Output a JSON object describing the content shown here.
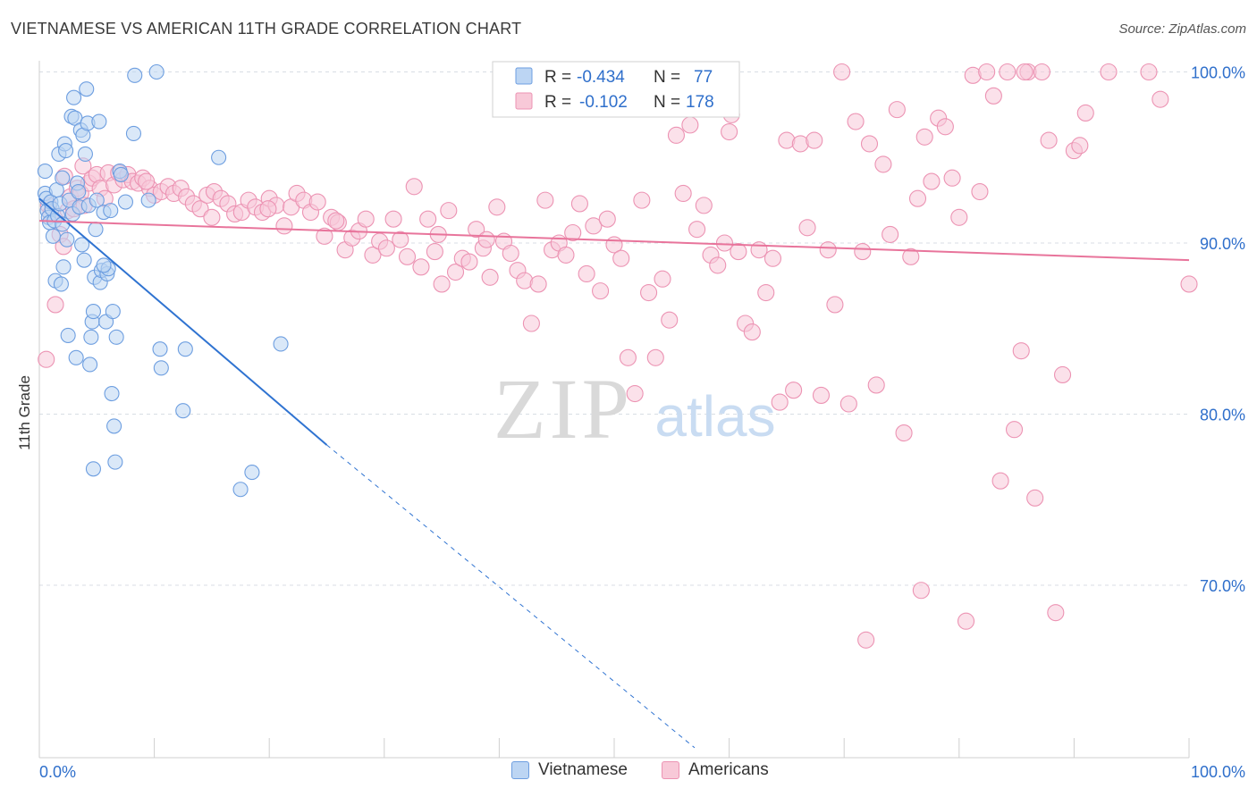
{
  "title": "VIETNAMESE VS AMERICAN 11TH GRADE CORRELATION CHART",
  "source": "Source: ZipAtlas.com",
  "colors": {
    "blue_fill": "#bcd5f3",
    "blue_stroke": "#6d9ee0",
    "blue_line": "#2f73d1",
    "pink_fill": "#f8c9d8",
    "pink_stroke": "#ec93b3",
    "pink_line": "#e8749b",
    "value_text": "#2f6fcb",
    "grid": "#d8dde4"
  },
  "stats_legend": {
    "rows": [
      {
        "r_label": "R =",
        "r_value": "-0.434",
        "n_label": "N =",
        "n_value": "77"
      },
      {
        "r_label": "R =",
        "r_value": "-0.102",
        "n_label": "N =",
        "n_value": "178"
      }
    ]
  },
  "bottom_legend": {
    "vietnamese": "Vietnamese",
    "americans": "Americans"
  },
  "watermark": {
    "zip": "ZIP",
    "atlas": "atlas"
  },
  "chart_data": {
    "type": "scatter",
    "title": "VIETNAMESE VS AMERICAN 11TH GRADE CORRELATION CHART",
    "xlabel": "",
    "ylabel": "11th Grade",
    "xlim": [
      0,
      100
    ],
    "ylim": [
      60.5,
      101.5
    ],
    "x_tick_labels": [
      "0.0%",
      "100.0%"
    ],
    "y_ticks": [
      70,
      80,
      90,
      100
    ],
    "y_tick_labels": [
      "70.0%",
      "80.0%",
      "90.0%",
      "100.0%"
    ],
    "grid": true,
    "series": [
      {
        "name": "Vietnamese",
        "r": -0.434,
        "n": 77,
        "trend": {
          "x0": 0,
          "y0": 92.6,
          "x1": 25,
          "y1": 78.2,
          "dashed_to_x": 57,
          "dashed_to_y": 60.5
        },
        "points": [
          [
            0.5,
            94.2
          ],
          [
            0.5,
            92.9
          ],
          [
            0.6,
            92.6
          ],
          [
            0.7,
            91.9
          ],
          [
            0.8,
            91.5
          ],
          [
            0.9,
            91.2
          ],
          [
            1.0,
            92.4
          ],
          [
            1.1,
            92.0
          ],
          [
            1.2,
            90.4
          ],
          [
            1.3,
            91.3
          ],
          [
            1.4,
            87.8
          ],
          [
            1.5,
            93.1
          ],
          [
            1.6,
            91.6
          ],
          [
            1.7,
            95.2
          ],
          [
            1.8,
            92.3
          ],
          [
            1.9,
            87.6
          ],
          [
            2.0,
            91.1
          ],
          [
            2.0,
            93.8
          ],
          [
            2.1,
            88.6
          ],
          [
            2.2,
            95.8
          ],
          [
            2.3,
            95.4
          ],
          [
            2.4,
            90.2
          ],
          [
            2.5,
            84.6
          ],
          [
            2.6,
            92.5
          ],
          [
            2.8,
            97.4
          ],
          [
            2.9,
            91.7
          ],
          [
            3.0,
            98.5
          ],
          [
            3.1,
            97.3
          ],
          [
            3.2,
            83.3
          ],
          [
            3.3,
            93.5
          ],
          [
            3.4,
            93.0
          ],
          [
            3.5,
            92.1
          ],
          [
            3.6,
            96.6
          ],
          [
            3.7,
            89.9
          ],
          [
            3.8,
            96.3
          ],
          [
            3.9,
            89.0
          ],
          [
            4.0,
            95.2
          ],
          [
            4.1,
            99.0
          ],
          [
            4.2,
            97.0
          ],
          [
            4.3,
            92.2
          ],
          [
            4.4,
            82.9
          ],
          [
            4.5,
            84.5
          ],
          [
            4.6,
            85.4
          ],
          [
            4.7,
            86.0
          ],
          [
            4.8,
            88.0
          ],
          [
            4.9,
            90.8
          ],
          [
            5.0,
            92.5
          ],
          [
            5.2,
            97.1
          ],
          [
            5.3,
            87.7
          ],
          [
            5.4,
            88.4
          ],
          [
            5.6,
            91.8
          ],
          [
            5.8,
            85.4
          ],
          [
            5.9,
            88.2
          ],
          [
            6.0,
            88.5
          ],
          [
            6.2,
            91.9
          ],
          [
            6.3,
            81.2
          ],
          [
            6.4,
            86.0
          ],
          [
            6.5,
            79.3
          ],
          [
            6.6,
            77.2
          ],
          [
            6.7,
            84.5
          ],
          [
            4.7,
            76.8
          ],
          [
            7.0,
            94.2
          ],
          [
            7.5,
            92.4
          ],
          [
            8.2,
            96.4
          ],
          [
            8.3,
            99.8
          ],
          [
            9.5,
            92.5
          ],
          [
            10.2,
            100.0
          ],
          [
            10.5,
            83.8
          ],
          [
            10.6,
            82.7
          ],
          [
            12.5,
            80.2
          ],
          [
            12.7,
            83.8
          ],
          [
            15.6,
            95.0
          ],
          [
            17.5,
            75.6
          ],
          [
            18.5,
            76.6
          ],
          [
            21.0,
            84.1
          ],
          [
            5.6,
            88.7
          ],
          [
            7.1,
            94.0
          ]
        ]
      },
      {
        "name": "Americans",
        "r": -0.102,
        "n": 178,
        "trend": {
          "x0": 0,
          "y0": 91.3,
          "x1": 100,
          "y1": 89.0
        },
        "points": [
          [
            0.6,
            83.2
          ],
          [
            0.8,
            92.2
          ],
          [
            1.0,
            91.7
          ],
          [
            1.4,
            86.4
          ],
          [
            1.8,
            90.5
          ],
          [
            2.1,
            89.8
          ],
          [
            2.5,
            91.9
          ],
          [
            2.7,
            92.7
          ],
          [
            3.0,
            92.0
          ],
          [
            3.3,
            93.2
          ],
          [
            3.6,
            92.9
          ],
          [
            3.9,
            92.2
          ],
          [
            4.3,
            93.5
          ],
          [
            4.6,
            93.8
          ],
          [
            5.0,
            94.0
          ],
          [
            5.3,
            93.2
          ],
          [
            5.7,
            92.6
          ],
          [
            6.0,
            94.1
          ],
          [
            6.5,
            93.4
          ],
          [
            6.9,
            94.1
          ],
          [
            7.3,
            93.7
          ],
          [
            7.7,
            94.0
          ],
          [
            8.1,
            93.6
          ],
          [
            8.6,
            93.5
          ],
          [
            9.0,
            93.8
          ],
          [
            9.6,
            93.2
          ],
          [
            10.0,
            92.8
          ],
          [
            10.6,
            93.0
          ],
          [
            11.2,
            93.3
          ],
          [
            11.7,
            92.9
          ],
          [
            12.3,
            93.2
          ],
          [
            12.8,
            92.7
          ],
          [
            13.4,
            92.3
          ],
          [
            14.0,
            92.0
          ],
          [
            14.6,
            92.8
          ],
          [
            15.2,
            93.0
          ],
          [
            15.8,
            92.6
          ],
          [
            16.4,
            92.3
          ],
          [
            17.0,
            91.7
          ],
          [
            17.6,
            91.8
          ],
          [
            18.2,
            92.5
          ],
          [
            18.8,
            92.1
          ],
          [
            19.4,
            91.8
          ],
          [
            20.0,
            92.6
          ],
          [
            20.6,
            92.2
          ],
          [
            21.3,
            91.0
          ],
          [
            21.9,
            92.1
          ],
          [
            22.4,
            92.9
          ],
          [
            23.0,
            92.5
          ],
          [
            23.6,
            91.8
          ],
          [
            24.2,
            92.4
          ],
          [
            24.8,
            90.4
          ],
          [
            25.4,
            91.5
          ],
          [
            26.0,
            91.2
          ],
          [
            26.6,
            89.6
          ],
          [
            27.2,
            90.3
          ],
          [
            27.8,
            90.7
          ],
          [
            28.4,
            91.4
          ],
          [
            29.0,
            89.3
          ],
          [
            29.6,
            90.1
          ],
          [
            30.2,
            89.7
          ],
          [
            30.8,
            91.4
          ],
          [
            31.4,
            90.2
          ],
          [
            32.0,
            89.2
          ],
          [
            32.6,
            93.3
          ],
          [
            33.2,
            88.6
          ],
          [
            33.8,
            91.4
          ],
          [
            34.4,
            89.5
          ],
          [
            35.0,
            87.6
          ],
          [
            35.6,
            91.9
          ],
          [
            36.2,
            88.3
          ],
          [
            36.8,
            89.1
          ],
          [
            37.4,
            88.9
          ],
          [
            38.0,
            90.8
          ],
          [
            38.6,
            89.7
          ],
          [
            39.2,
            88.0
          ],
          [
            39.8,
            92.1
          ],
          [
            40.4,
            90.1
          ],
          [
            41.0,
            89.4
          ],
          [
            41.6,
            88.4
          ],
          [
            42.2,
            87.8
          ],
          [
            42.8,
            85.3
          ],
          [
            43.4,
            87.6
          ],
          [
            44.0,
            92.5
          ],
          [
            44.6,
            89.6
          ],
          [
            45.2,
            90.0
          ],
          [
            45.8,
            89.3
          ],
          [
            46.4,
            90.6
          ],
          [
            47.0,
            92.3
          ],
          [
            47.6,
            88.2
          ],
          [
            48.2,
            91.0
          ],
          [
            48.8,
            87.2
          ],
          [
            49.4,
            91.4
          ],
          [
            50.0,
            89.9
          ],
          [
            50.6,
            89.1
          ],
          [
            51.2,
            83.3
          ],
          [
            51.8,
            81.2
          ],
          [
            52.4,
            92.5
          ],
          [
            53.0,
            87.1
          ],
          [
            53.6,
            83.3
          ],
          [
            54.2,
            87.9
          ],
          [
            54.8,
            85.5
          ],
          [
            55.4,
            96.3
          ],
          [
            56.0,
            92.9
          ],
          [
            56.6,
            96.9
          ],
          [
            57.2,
            90.8
          ],
          [
            57.8,
            92.2
          ],
          [
            58.4,
            89.3
          ],
          [
            59.0,
            88.7
          ],
          [
            59.6,
            90.0
          ],
          [
            60.2,
            97.5
          ],
          [
            60.8,
            89.5
          ],
          [
            61.4,
            85.3
          ],
          [
            62.0,
            84.8
          ],
          [
            62.6,
            89.6
          ],
          [
            63.2,
            87.1
          ],
          [
            63.8,
            89.1
          ],
          [
            64.4,
            80.7
          ],
          [
            65.0,
            96.0
          ],
          [
            65.6,
            81.4
          ],
          [
            66.2,
            95.8
          ],
          [
            66.8,
            90.9
          ],
          [
            67.4,
            96.0
          ],
          [
            68.0,
            81.1
          ],
          [
            68.6,
            89.6
          ],
          [
            69.2,
            86.4
          ],
          [
            69.8,
            100.0
          ],
          [
            70.4,
            80.6
          ],
          [
            71.0,
            97.1
          ],
          [
            71.6,
            89.5
          ],
          [
            72.2,
            95.8
          ],
          [
            72.8,
            81.7
          ],
          [
            73.4,
            94.6
          ],
          [
            74.0,
            90.5
          ],
          [
            74.6,
            97.8
          ],
          [
            75.2,
            78.9
          ],
          [
            75.8,
            89.2
          ],
          [
            76.4,
            92.6
          ],
          [
            77.0,
            96.2
          ],
          [
            77.6,
            93.6
          ],
          [
            78.2,
            97.3
          ],
          [
            78.8,
            96.8
          ],
          [
            79.4,
            93.8
          ],
          [
            80.0,
            91.5
          ],
          [
            80.6,
            67.9
          ],
          [
            81.2,
            99.8
          ],
          [
            81.8,
            93.0
          ],
          [
            82.4,
            100.0
          ],
          [
            83.0,
            98.6
          ],
          [
            83.6,
            76.1
          ],
          [
            84.2,
            100.0
          ],
          [
            84.8,
            79.1
          ],
          [
            85.4,
            83.7
          ],
          [
            86.0,
            100.0
          ],
          [
            86.6,
            75.1
          ],
          [
            87.2,
            100.0
          ],
          [
            87.8,
            96.0
          ],
          [
            88.4,
            68.4
          ],
          [
            89.0,
            82.3
          ],
          [
            90.0,
            95.4
          ],
          [
            91.0,
            97.6
          ],
          [
            93.0,
            100.0
          ],
          [
            96.5,
            100.0
          ],
          [
            97.5,
            98.4
          ],
          [
            100.0,
            87.6
          ],
          [
            60.0,
            96.5
          ],
          [
            71.9,
            66.8
          ],
          [
            76.7,
            69.7
          ],
          [
            90.5,
            95.7
          ],
          [
            85.7,
            100.0
          ],
          [
            2.2,
            93.9
          ],
          [
            3.8,
            94.5
          ],
          [
            9.3,
            93.6
          ],
          [
            15.0,
            91.5
          ],
          [
            19.9,
            92.0
          ],
          [
            25.8,
            91.3
          ],
          [
            34.7,
            90.5
          ],
          [
            38.9,
            90.2
          ]
        ]
      }
    ]
  }
}
